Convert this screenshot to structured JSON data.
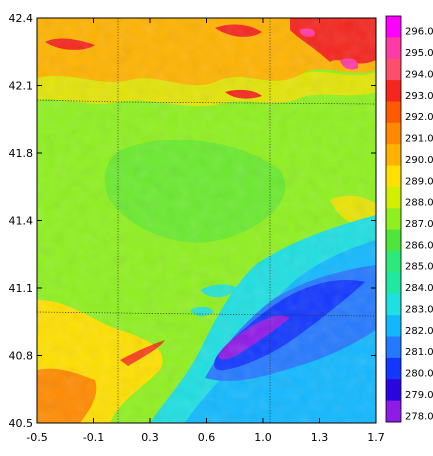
{
  "map": {
    "x_ticks": [
      "-0.5",
      "-0.1",
      "0.3",
      "0.6",
      "1.0",
      "1.3",
      "1.7"
    ],
    "y_ticks": [
      "42.4",
      "42.1",
      "41.8",
      "41.4",
      "41.1",
      "40.8",
      "40.5"
    ],
    "x_range": [
      -0.5,
      1.7
    ],
    "y_range": [
      40.5,
      42.4
    ],
    "colorbar": {
      "labels": [
        "296.0",
        "295.0",
        "294.0",
        "293.0",
        "292.0",
        "291.0",
        "290.0",
        "289.0",
        "288.0",
        "287.0",
        "286.0",
        "285.0",
        "284.0",
        "283.0",
        "282.0",
        "281.0",
        "280.0",
        "279.0",
        "278.0"
      ],
      "colors": [
        "#ff00ff",
        "#ff3aa6",
        "#ff4f6a",
        "#f4261e",
        "#ff5a00",
        "#ff8a00",
        "#ffb300",
        "#ffe000",
        "#d2ef00",
        "#8ff01f",
        "#4fe63c",
        "#2de87a",
        "#1fe8a0",
        "#1edfe1",
        "#12b8ff",
        "#2579ff",
        "#1237ff",
        "#2a05df",
        "#8f1be6"
      ]
    },
    "regions": {
      "background": "#8ff01f",
      "north_band": "#ffb300",
      "north_hot": "#f4261e",
      "southwest": "#ffe000",
      "southwest_hot": "#ff8a00",
      "southeast_cool": "#1edfe1",
      "southeast_mid": "#12b8ff",
      "southeast_cold": "#2579ff",
      "cold_core": "#1237ff",
      "coldest": "#8f1be6",
      "center_patch": "#4fe63c"
    }
  }
}
